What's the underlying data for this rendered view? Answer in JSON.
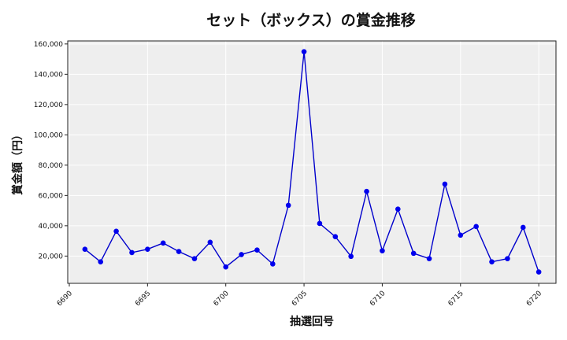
{
  "chart_data": {
    "type": "line",
    "title": "セット（ボックス）の賞金推移",
    "xlabel": "抽選回号",
    "ylabel": "賞金額（円）",
    "xlim": [
      6689.9,
      6721.1
    ],
    "ylim": [
      2000,
      162000
    ],
    "x_ticks": [
      6690,
      6695,
      6700,
      6705,
      6710,
      6715,
      6720
    ],
    "y_ticks": [
      20000,
      40000,
      60000,
      80000,
      100000,
      120000,
      140000,
      160000
    ],
    "y_tick_labels": [
      "20,000",
      "40,000",
      "60,000",
      "80,000",
      "100,000",
      "120,000",
      "140,000",
      "160,000"
    ],
    "grid": true,
    "plot_background": "#eeeeee",
    "line_color": "#0000cc",
    "marker_color": "#0000ee",
    "series": [
      {
        "x": [
          6691,
          6692,
          6693,
          6694,
          6695,
          6696,
          6697,
          6698,
          6699,
          6700,
          6701,
          6702,
          6703,
          6704,
          6705,
          6706,
          6707,
          6708,
          6709,
          6710,
          6711,
          6712,
          6713,
          6714,
          6715,
          6716,
          6717,
          6718,
          6719,
          6720
        ],
        "values": [
          24500,
          16200,
          36400,
          22300,
          24500,
          28600,
          23000,
          18300,
          29100,
          12800,
          21000,
          24000,
          14800,
          53500,
          154900,
          41500,
          32800,
          19800,
          62700,
          23500,
          51000,
          21800,
          18300,
          67500,
          33800,
          39500,
          16200,
          18300,
          38900,
          9500
        ]
      }
    ]
  }
}
